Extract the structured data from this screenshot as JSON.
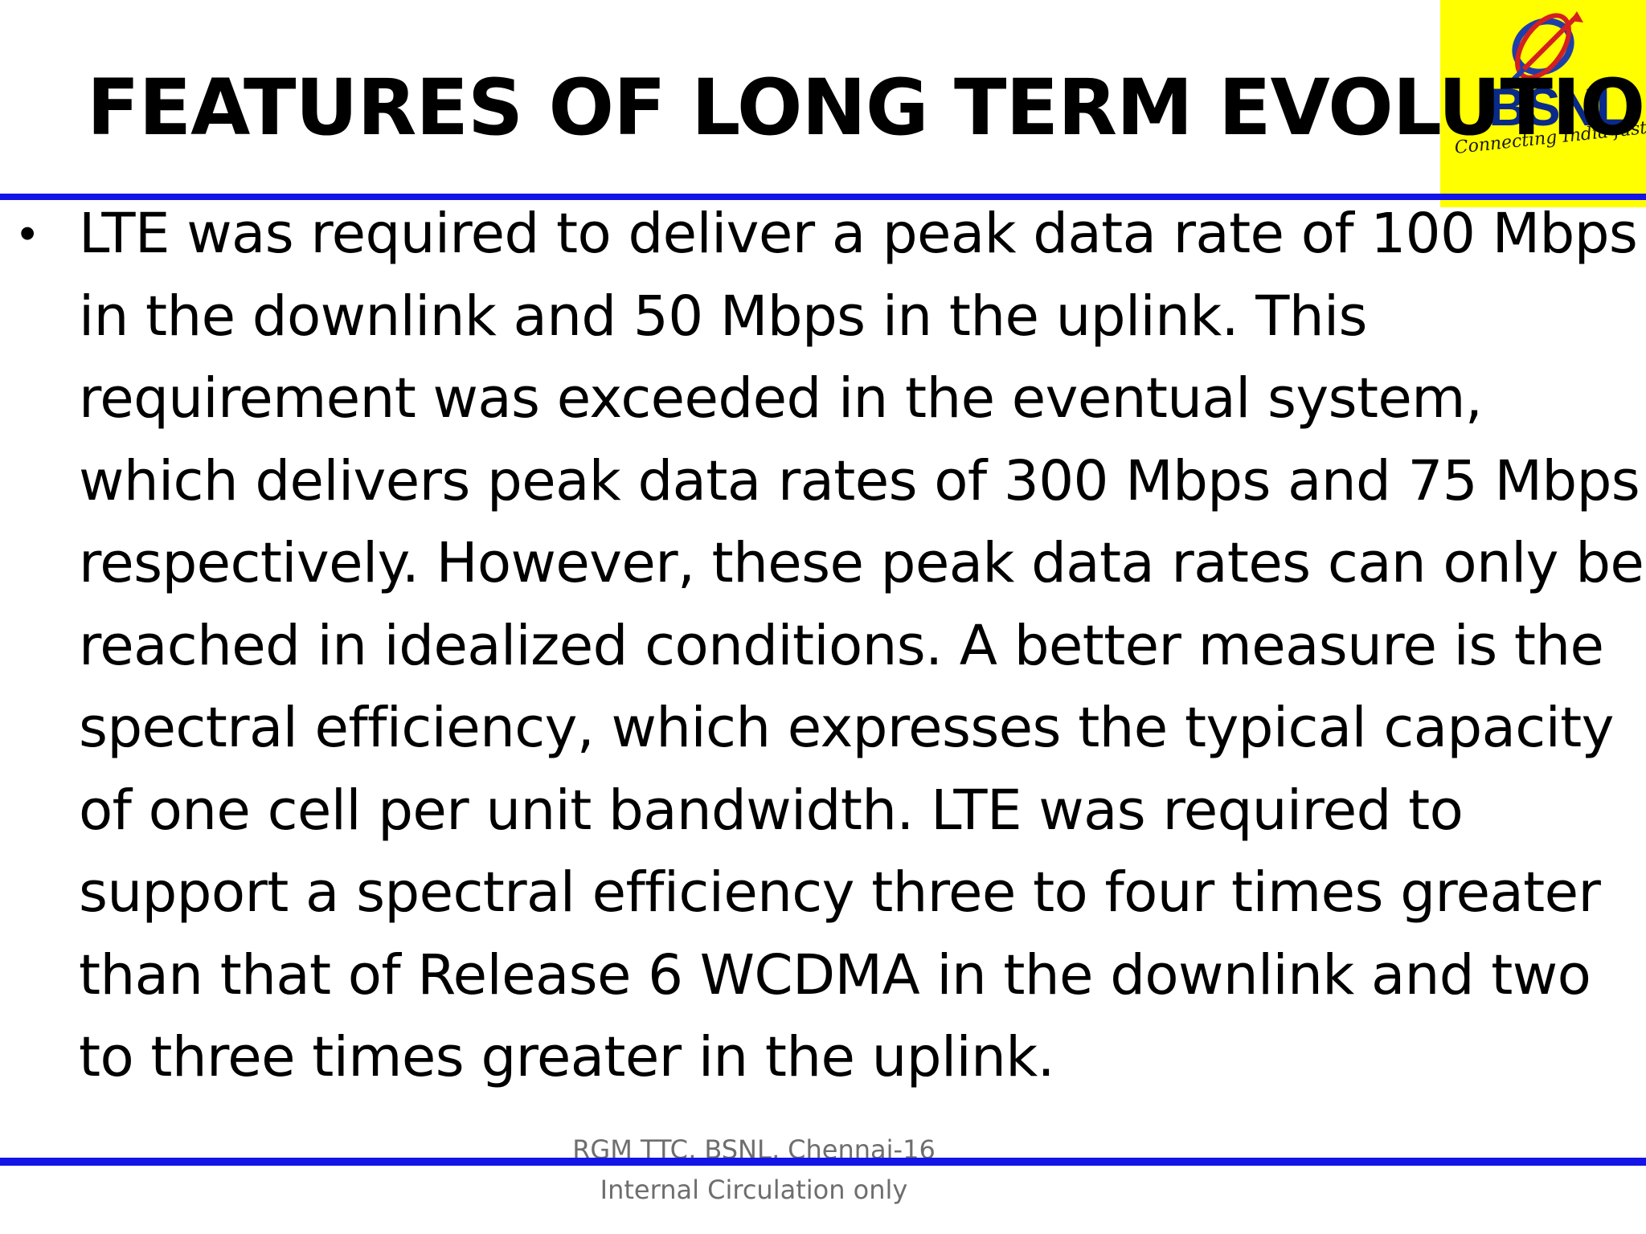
{
  "slide": {
    "title": "FEATURES OF LONG TERM EVOLUTION",
    "bullets": [
      {
        "text": "LTE was required to deliver a peak data rate of 100 Mbps in the downlink and 50 Mbps in the uplink. This requirement was exceeded in the eventual system, which delivers peak data rates of 300 Mbps and 75 Mbps respectively. However, these peak data rates can only be reached in idealized conditions. A better measure is the spectral efficiency, which expresses the typical capacity of one cell per unit bandwidth. LTE was required to support a spectral efficiency three to four times greater than that of Release 6 WCDMA in the downlink and two to three times greater in the uplink."
      }
    ]
  },
  "logo": {
    "name": "BSNL",
    "tagline": "Connecting India faster",
    "background_color": "#ffff00"
  },
  "footer": {
    "line1": "RGM TTC, BSNL, Chennai-16",
    "line2": "Internal Circulation only"
  },
  "colors": {
    "rule": "#1414e6",
    "text": "#000000",
    "footer_text": "#6e6e6e"
  }
}
